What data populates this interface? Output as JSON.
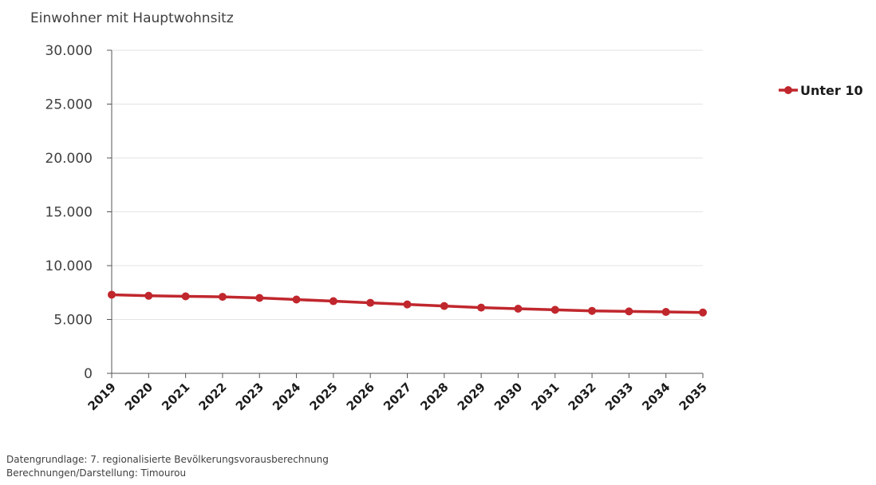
{
  "chart_data": {
    "type": "line",
    "ylabel": "Einwohner mit Hauptwohnsitz",
    "ylim": [
      0,
      30000
    ],
    "yticks": [
      0,
      5000,
      10000,
      15000,
      20000,
      25000,
      30000
    ],
    "ytick_labels": [
      "0",
      "5.000",
      "10.000",
      "15.000",
      "20.000",
      "25.000",
      "30.000"
    ],
    "categories": [
      "2019",
      "2020",
      "2021",
      "2022",
      "2023",
      "2024",
      "2025",
      "2026",
      "2027",
      "2028",
      "2029",
      "2030",
      "2031",
      "2032",
      "2033",
      "2034",
      "2035"
    ],
    "series": [
      {
        "name": "Unter 10",
        "color": "#c0272d",
        "values": [
          7300,
          7200,
          7150,
          7100,
          7000,
          6850,
          6700,
          6550,
          6400,
          6250,
          6100,
          6000,
          5900,
          5800,
          5750,
          5700,
          5650
        ]
      }
    ],
    "grid": true,
    "legend_position": "top-right"
  },
  "footer": {
    "source_line1": "Datengrundlage: 7. regionalisierte Bevölkerungsvorausberechnung",
    "source_line2": "Berechnungen/Darstellung: Timourou"
  }
}
